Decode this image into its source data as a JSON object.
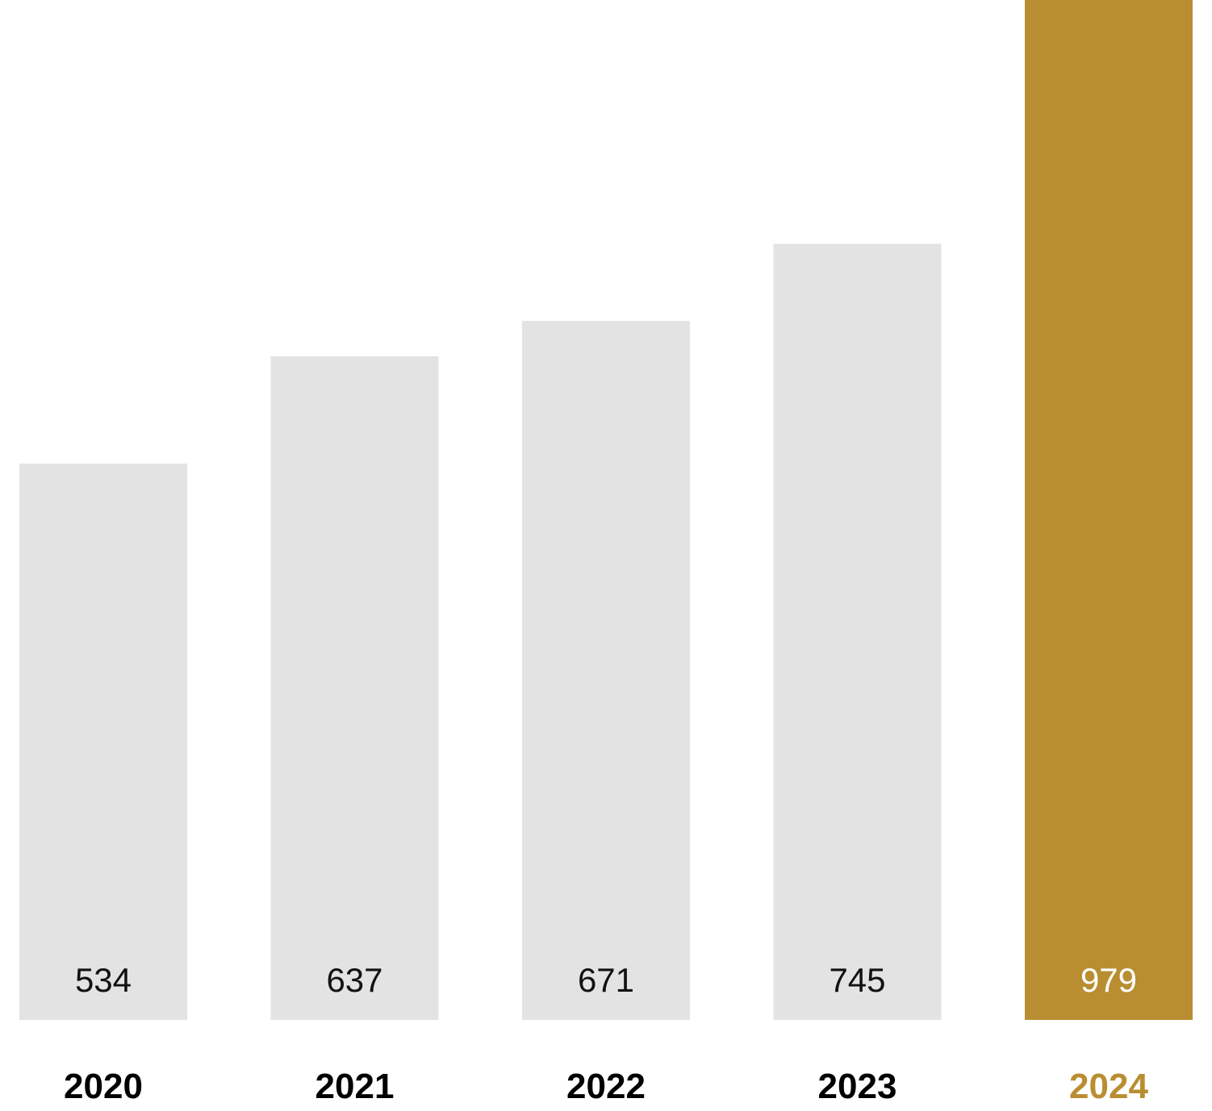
{
  "chart_data": {
    "type": "bar",
    "categories": [
      "2020",
      "2021",
      "2022",
      "2023",
      "2024"
    ],
    "values": [
      534,
      637,
      671,
      745,
      979
    ],
    "value_labels": [
      "534",
      "637",
      "671",
      "745",
      "979"
    ],
    "highlight_index": 4,
    "ylim": [
      0,
      979
    ],
    "grid": false,
    "title": "",
    "xlabel": "",
    "ylabel": "",
    "colors": {
      "bar": "#e3e3e3",
      "highlight_bar": "#b98e32",
      "value_text": "#111111",
      "highlight_value_text": "#ffffff",
      "category_text": "#000000",
      "highlight_category_text": "#b98e32"
    }
  }
}
